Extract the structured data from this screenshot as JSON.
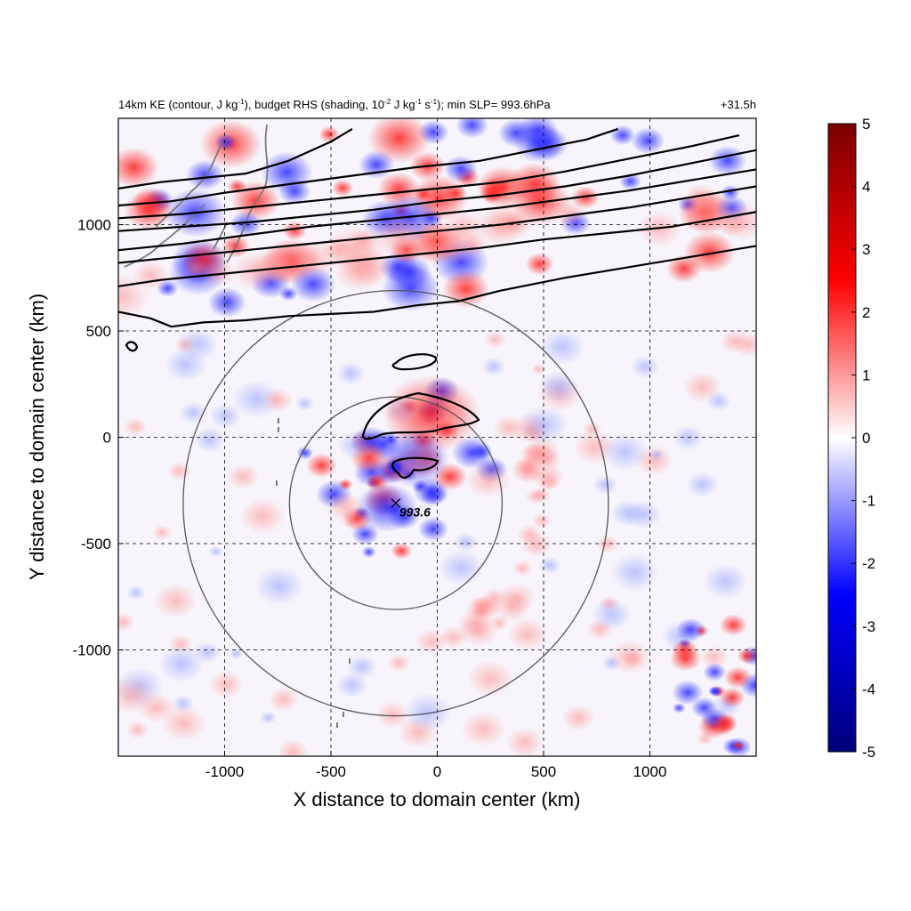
{
  "chart_data": {
    "type": "heatmap",
    "title": {
      "part1": "14km KE (contour, J kg",
      "sup1": "-1",
      "part2": "), budget RHS (shading, 10",
      "sup2": "-2",
      "part3": " J kg",
      "sup3": "-1",
      "part4": " s",
      "sup4": "-1",
      "part5": "); min SLP= 993.6hPa"
    },
    "time_label": "+31.5h",
    "xlabel": "X distance to domain center (km)",
    "ylabel": "Y distance to domain center (km)",
    "xlim": [
      -1500,
      1500
    ],
    "ylim": [
      -1500,
      1500
    ],
    "x_ticks": [
      -1000,
      -500,
      0,
      500,
      1000
    ],
    "y_ticks": [
      -1000,
      -500,
      0,
      500,
      1000
    ],
    "x_tick_labels": [
      "-1000",
      "-500",
      "0",
      "500",
      "1000"
    ],
    "y_tick_labels": [
      "-1000",
      "-500",
      "0",
      "500",
      "1000"
    ],
    "grid": true,
    "colorbar": {
      "min": -5,
      "max": 5,
      "ticks": [
        5,
        4,
        3,
        2,
        1,
        0,
        -1,
        -2,
        -3,
        -4,
        -5
      ],
      "labels": [
        "5",
        "4",
        "3",
        "2",
        "1",
        "0",
        "-1",
        "-2",
        "-3",
        "-4",
        "-5"
      ],
      "colors": [
        "#00007a",
        "#0000ff",
        "#ffffff",
        "#ff0000",
        "#7a0000"
      ]
    },
    "storm_center": {
      "x": -195,
      "y": -310,
      "label": "993.6"
    },
    "rings_km": [
      500,
      1000
    ],
    "ke_contours": [
      [
        [
          -1500,
          1170
        ],
        [
          -1300,
          1200
        ],
        [
          -1100,
          1220
        ],
        [
          -900,
          1240
        ],
        [
          -700,
          1300
        ],
        [
          -500,
          1390
        ],
        [
          -400,
          1450
        ]
      ],
      [
        [
          -1500,
          1090
        ],
        [
          -1250,
          1110
        ],
        [
          -1000,
          1150
        ],
        [
          -700,
          1190
        ],
        [
          -400,
          1230
        ],
        [
          -100,
          1270
        ],
        [
          200,
          1300
        ],
        [
          500,
          1360
        ],
        [
          700,
          1400
        ],
        [
          850,
          1450
        ]
      ],
      [
        [
          -1500,
          1030
        ],
        [
          -1200,
          1050
        ],
        [
          -900,
          1080
        ],
        [
          -600,
          1110
        ],
        [
          -300,
          1140
        ],
        [
          0,
          1170
        ],
        [
          300,
          1200
        ],
        [
          600,
          1250
        ],
        [
          900,
          1310
        ],
        [
          1200,
          1370
        ],
        [
          1420,
          1420
        ]
      ],
      [
        [
          -1500,
          970
        ],
        [
          -1200,
          990
        ],
        [
          -900,
          1010
        ],
        [
          -600,
          1040
        ],
        [
          -300,
          1070
        ],
        [
          0,
          1110
        ],
        [
          300,
          1140
        ],
        [
          600,
          1180
        ],
        [
          900,
          1230
        ],
        [
          1200,
          1290
        ],
        [
          1500,
          1350
        ]
      ],
      [
        [
          -1500,
          880
        ],
        [
          -1200,
          910
        ],
        [
          -900,
          950
        ],
        [
          -600,
          990
        ],
        [
          -300,
          1020
        ],
        [
          0,
          1050
        ],
        [
          300,
          1080
        ],
        [
          600,
          1120
        ],
        [
          900,
          1160
        ],
        [
          1200,
          1210
        ],
        [
          1500,
          1260
        ]
      ],
      [
        [
          -1500,
          820
        ],
        [
          -1200,
          850
        ],
        [
          -900,
          880
        ],
        [
          -600,
          910
        ],
        [
          -300,
          940
        ],
        [
          0,
          970
        ],
        [
          300,
          1000
        ],
        [
          600,
          1040
        ],
        [
          900,
          1080
        ],
        [
          1200,
          1130
        ],
        [
          1500,
          1180
        ]
      ],
      [
        [
          -1500,
          710
        ],
        [
          -1300,
          740
        ],
        [
          -1000,
          770
        ],
        [
          -700,
          800
        ],
        [
          -400,
          830
        ],
        [
          -100,
          860
        ],
        [
          200,
          890
        ],
        [
          500,
          930
        ],
        [
          800,
          960
        ],
        [
          1100,
          990
        ],
        [
          1500,
          1060
        ]
      ],
      [
        [
          -1500,
          590
        ],
        [
          -1350,
          560
        ],
        [
          -1250,
          520
        ],
        [
          -1100,
          540
        ],
        [
          -900,
          550
        ],
        [
          -700,
          570
        ],
        [
          -500,
          580
        ],
        [
          -300,
          590
        ],
        [
          -100,
          620
        ],
        [
          100,
          640
        ],
        [
          300,
          690
        ],
        [
          600,
          750
        ],
        [
          900,
          800
        ],
        [
          1200,
          850
        ],
        [
          1500,
          900
        ]
      ]
    ]
  }
}
